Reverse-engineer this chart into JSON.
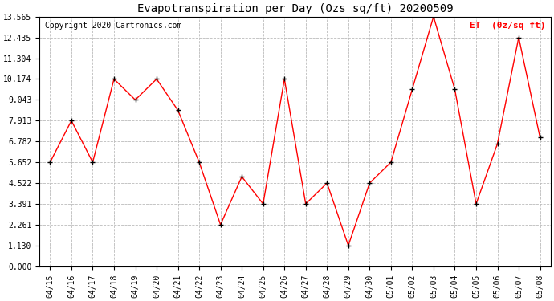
{
  "title": "Evapotranspiration per Day (Ozs sq/ft) 20200509",
  "copyright": "Copyright 2020 Cartronics.com",
  "legend_label": "ET  (0z/sq ft)",
  "dates": [
    "04/15",
    "04/16",
    "04/17",
    "04/18",
    "04/19",
    "04/20",
    "04/21",
    "04/22",
    "04/23",
    "04/24",
    "04/25",
    "04/26",
    "04/27",
    "04/28",
    "04/29",
    "04/30",
    "05/01",
    "05/02",
    "05/03",
    "05/04",
    "05/05",
    "05/06",
    "05/07",
    "05/08"
  ],
  "values": [
    5.652,
    7.913,
    5.652,
    10.174,
    9.043,
    10.174,
    8.478,
    5.652,
    2.261,
    4.87,
    3.391,
    10.174,
    3.391,
    4.522,
    1.13,
    4.522,
    5.652,
    9.609,
    13.565,
    9.609,
    3.391,
    6.652,
    12.435,
    7.0
  ],
  "ylim": [
    0.0,
    13.565
  ],
  "yticks": [
    0.0,
    1.13,
    2.261,
    3.391,
    4.522,
    5.652,
    6.782,
    7.913,
    9.043,
    10.174,
    11.304,
    12.435,
    13.565
  ],
  "line_color": "red",
  "marker_color": "black",
  "background_color": "white",
  "grid_color": "#bbbbbb",
  "title_fontsize": 10,
  "copyright_fontsize": 7,
  "legend_fontsize": 8,
  "tick_fontsize": 7,
  "fig_width": 6.9,
  "fig_height": 3.75,
  "dpi": 100
}
